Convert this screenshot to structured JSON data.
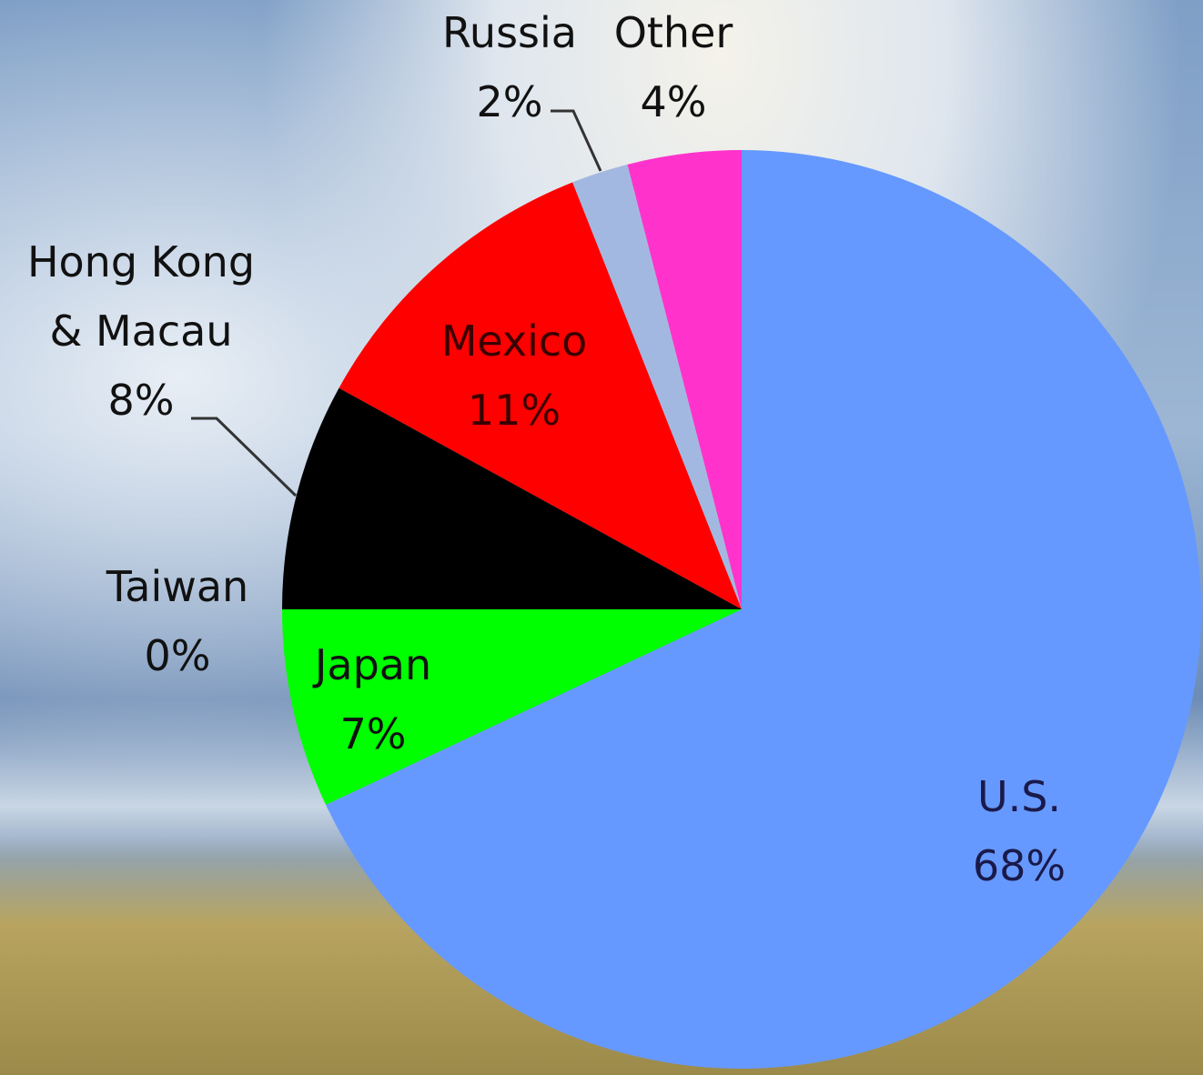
{
  "chart_data": {
    "type": "pie",
    "categories": [
      "U.S.",
      "Japan",
      "Taiwan",
      "Hong Kong & Macau",
      "Mexico",
      "Russia",
      "Other"
    ],
    "values": [
      68,
      7,
      0,
      8,
      11,
      2,
      4
    ],
    "value_labels": [
      "68%",
      "7%",
      "0%",
      "8%",
      "11%",
      "2%",
      "4%"
    ],
    "colors": [
      "#6699ff",
      "#00ff00",
      "#999999",
      "#000000",
      "#ff0000",
      "#a3b8e0",
      "#ff33cc"
    ]
  }
}
